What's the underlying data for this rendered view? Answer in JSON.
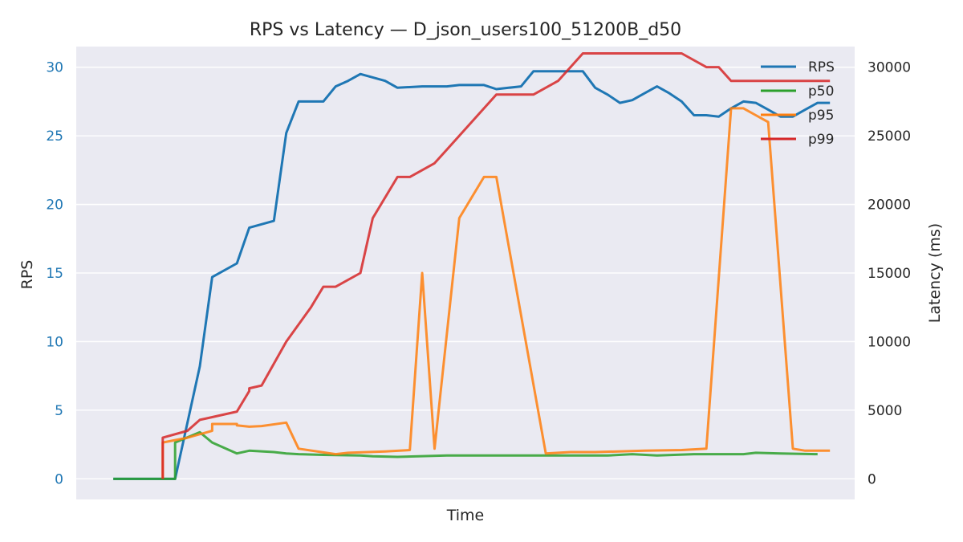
{
  "chart_data": {
    "type": "line",
    "title": "RPS vs Latency — D_json_users100_51200B_d50",
    "xlabel": "Time",
    "ylabel_left": "RPS",
    "ylabel_right": "Latency (ms)",
    "ylim_left": [
      -1.5,
      31.5
    ],
    "ylim_right": [
      -1500,
      31500
    ],
    "yticks_left": [
      "0",
      "5",
      "10",
      "15",
      "20",
      "25",
      "30"
    ],
    "yticks_right": [
      "0",
      "5000",
      "10000",
      "15000",
      "20000",
      "25000",
      "30000"
    ],
    "xlim": [
      -2,
      61
    ],
    "grid": true,
    "legend_position": "top-right",
    "colors": {
      "rps": "#1f77b4",
      "p50": "#2ca02c",
      "p95": "#ff7f0e",
      "p99": "#d62728",
      "background": "#eaeaf2",
      "grid": "#ffffff",
      "text": "#262626"
    },
    "series": [
      {
        "name": "RPS",
        "axis": "left",
        "x": [
          1,
          6,
          8,
          9,
          11,
          12,
          14,
          15,
          16,
          18,
          19,
          20,
          21,
          23,
          24,
          26,
          27,
          28,
          29,
          30,
          31,
          32,
          33,
          34,
          35,
          36,
          37,
          38,
          39,
          40,
          41,
          42,
          43,
          44,
          45,
          46,
          47,
          48,
          49,
          50,
          51,
          52,
          53,
          54,
          55,
          56,
          57,
          58,
          59
        ],
        "y": [
          0,
          0,
          8.2,
          14.7,
          15.7,
          18.3,
          18.8,
          25.2,
          27.5,
          27.5,
          28.6,
          29.0,
          29.5,
          29.0,
          28.5,
          28.6,
          28.6,
          28.6,
          28.7,
          28.7,
          28.7,
          28.4,
          28.5,
          28.6,
          29.7,
          29.7,
          29.7,
          29.7,
          29.7,
          28.5,
          28.0,
          27.4,
          27.6,
          28.1,
          28.6,
          28.1,
          27.5,
          26.5,
          26.5,
          26.4,
          27.0,
          27.5,
          27.4,
          26.9,
          26.4,
          26.4,
          26.9,
          27.4,
          27.4
        ]
      },
      {
        "name": "p50",
        "axis": "right",
        "x": [
          1,
          4,
          5,
          6,
          6,
          8,
          9,
          11,
          12,
          14,
          15,
          16,
          18,
          21,
          22,
          24,
          28,
          32,
          36,
          40,
          41,
          43,
          45,
          48,
          50,
          52,
          53,
          55,
          58
        ],
        "y": [
          0,
          0,
          0,
          0,
          2650,
          3400,
          2650,
          1850,
          2050,
          1950,
          1850,
          1800,
          1750,
          1700,
          1650,
          1600,
          1700,
          1700,
          1700,
          1700,
          1700,
          1800,
          1700,
          1800,
          1800,
          1800,
          1900,
          1850,
          1800
        ]
      },
      {
        "name": "p95",
        "axis": "right",
        "x": [
          5,
          5,
          7,
          9,
          9,
          10,
          11,
          11,
          12,
          13,
          15,
          16,
          19,
          20,
          23,
          25,
          26,
          27,
          29,
          31,
          32,
          36,
          37,
          38,
          40,
          44,
          47,
          49,
          51,
          52,
          53,
          54,
          56,
          57,
          59
        ],
        "y": [
          0,
          2650,
          3000,
          3500,
          4000,
          4000,
          4000,
          3900,
          3800,
          3850,
          4100,
          2200,
          1800,
          1900,
          2000,
          2100,
          15000,
          2200,
          19000,
          22000,
          22000,
          1850,
          1900,
          1950,
          1950,
          2050,
          2100,
          2200,
          27000,
          27000,
          26500,
          26000,
          2200,
          2050,
          2050
        ]
      },
      {
        "name": "p99",
        "axis": "right",
        "x": [
          5,
          5,
          7,
          8,
          11,
          12,
          12,
          13,
          15,
          17,
          18,
          19,
          21,
          22,
          24,
          25,
          27,
          28,
          29,
          30,
          31,
          32,
          33,
          35,
          37,
          38,
          39,
          40,
          41,
          42,
          43,
          45,
          47,
          49,
          50,
          51,
          53,
          55,
          56,
          57,
          58,
          59
        ],
        "y": [
          0,
          3000,
          3500,
          4300,
          4900,
          6400,
          6600,
          6800,
          10000,
          12500,
          14000,
          14000,
          15000,
          19000,
          22000,
          22000,
          23000,
          24000,
          25000,
          26000,
          27000,
          28000,
          28000,
          28000,
          29000,
          30000,
          31000,
          31000,
          31000,
          31000,
          31000,
          31000,
          31000,
          30000,
          30000,
          29000,
          29000,
          29000,
          29000,
          29000,
          29000,
          29000
        ]
      }
    ]
  }
}
